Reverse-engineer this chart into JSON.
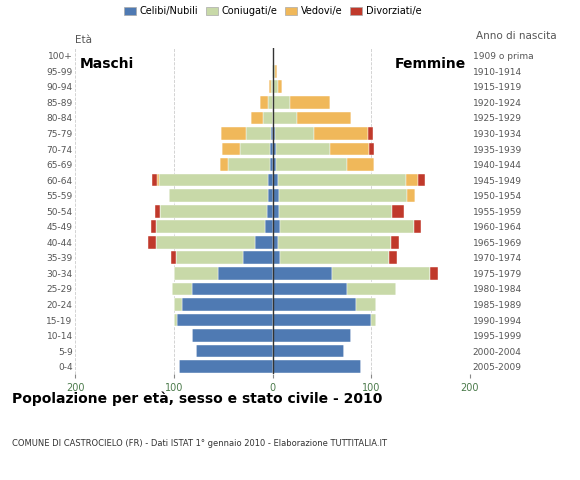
{
  "age_groups": [
    "0-4",
    "5-9",
    "10-14",
    "15-19",
    "20-24",
    "25-29",
    "30-34",
    "35-39",
    "40-44",
    "45-49",
    "50-54",
    "55-59",
    "60-64",
    "65-69",
    "70-74",
    "75-79",
    "80-84",
    "85-89",
    "90-94",
    "95-99",
    "100+"
  ],
  "birth_years": [
    "2005-2009",
    "2000-2004",
    "1995-1999",
    "1990-1994",
    "1985-1989",
    "1980-1984",
    "1975-1979",
    "1970-1974",
    "1965-1969",
    "1960-1964",
    "1955-1959",
    "1950-1954",
    "1945-1949",
    "1940-1944",
    "1935-1939",
    "1930-1934",
    "1925-1929",
    "1920-1924",
    "1915-1919",
    "1910-1914",
    "1909 o prima"
  ],
  "male": {
    "celibi": [
      95,
      78,
      82,
      97,
      92,
      82,
      55,
      30,
      18,
      8,
      6,
      5,
      5,
      3,
      3,
      2,
      0,
      0,
      0,
      0,
      0
    ],
    "coniugati": [
      0,
      0,
      0,
      3,
      8,
      20,
      45,
      68,
      100,
      110,
      108,
      100,
      110,
      42,
      30,
      25,
      10,
      5,
      2,
      1,
      0
    ],
    "vedovi": [
      0,
      0,
      0,
      0,
      0,
      0,
      0,
      0,
      0,
      0,
      0,
      0,
      2,
      8,
      18,
      25,
      12,
      8,
      2,
      0,
      0
    ],
    "divorziati": [
      0,
      0,
      0,
      0,
      0,
      0,
      0,
      5,
      8,
      5,
      5,
      0,
      5,
      0,
      0,
      0,
      0,
      0,
      0,
      0,
      0
    ]
  },
  "female": {
    "nubili": [
      90,
      72,
      80,
      100,
      85,
      75,
      60,
      8,
      5,
      8,
      6,
      6,
      5,
      3,
      3,
      2,
      0,
      0,
      0,
      0,
      0
    ],
    "coniugate": [
      0,
      0,
      0,
      5,
      20,
      50,
      100,
      110,
      115,
      135,
      115,
      130,
      130,
      72,
      55,
      40,
      25,
      18,
      5,
      2,
      0
    ],
    "vedove": [
      0,
      0,
      0,
      0,
      0,
      0,
      0,
      0,
      0,
      0,
      0,
      8,
      12,
      28,
      40,
      55,
      55,
      40,
      5,
      2,
      0
    ],
    "divorziate": [
      0,
      0,
      0,
      0,
      0,
      0,
      8,
      8,
      8,
      8,
      12,
      0,
      8,
      0,
      5,
      5,
      0,
      0,
      0,
      0,
      0
    ]
  },
  "colors": {
    "celibi": "#4f7ab3",
    "coniugati": "#c8d9a8",
    "vedovi": "#f0b85a",
    "divorziati": "#c0392b"
  },
  "xlim": 200,
  "title": "Popolazione per età, sesso e stato civile - 2010",
  "subtitle": "COMUNE DI CASTROCIELO (FR) - Dati ISTAT 1° gennaio 2010 - Elaborazione TUTTITALIA.IT",
  "label_maschi": "Maschi",
  "label_femmine": "Femmine",
  "label_eta": "Età",
  "label_anno": "Anno di nascita",
  "legend_labels": [
    "Celibi/Nubili",
    "Coniugati/e",
    "Vedovi/e",
    "Divorziati/e"
  ],
  "background": "#ffffff",
  "grid_color": "#cccccc"
}
